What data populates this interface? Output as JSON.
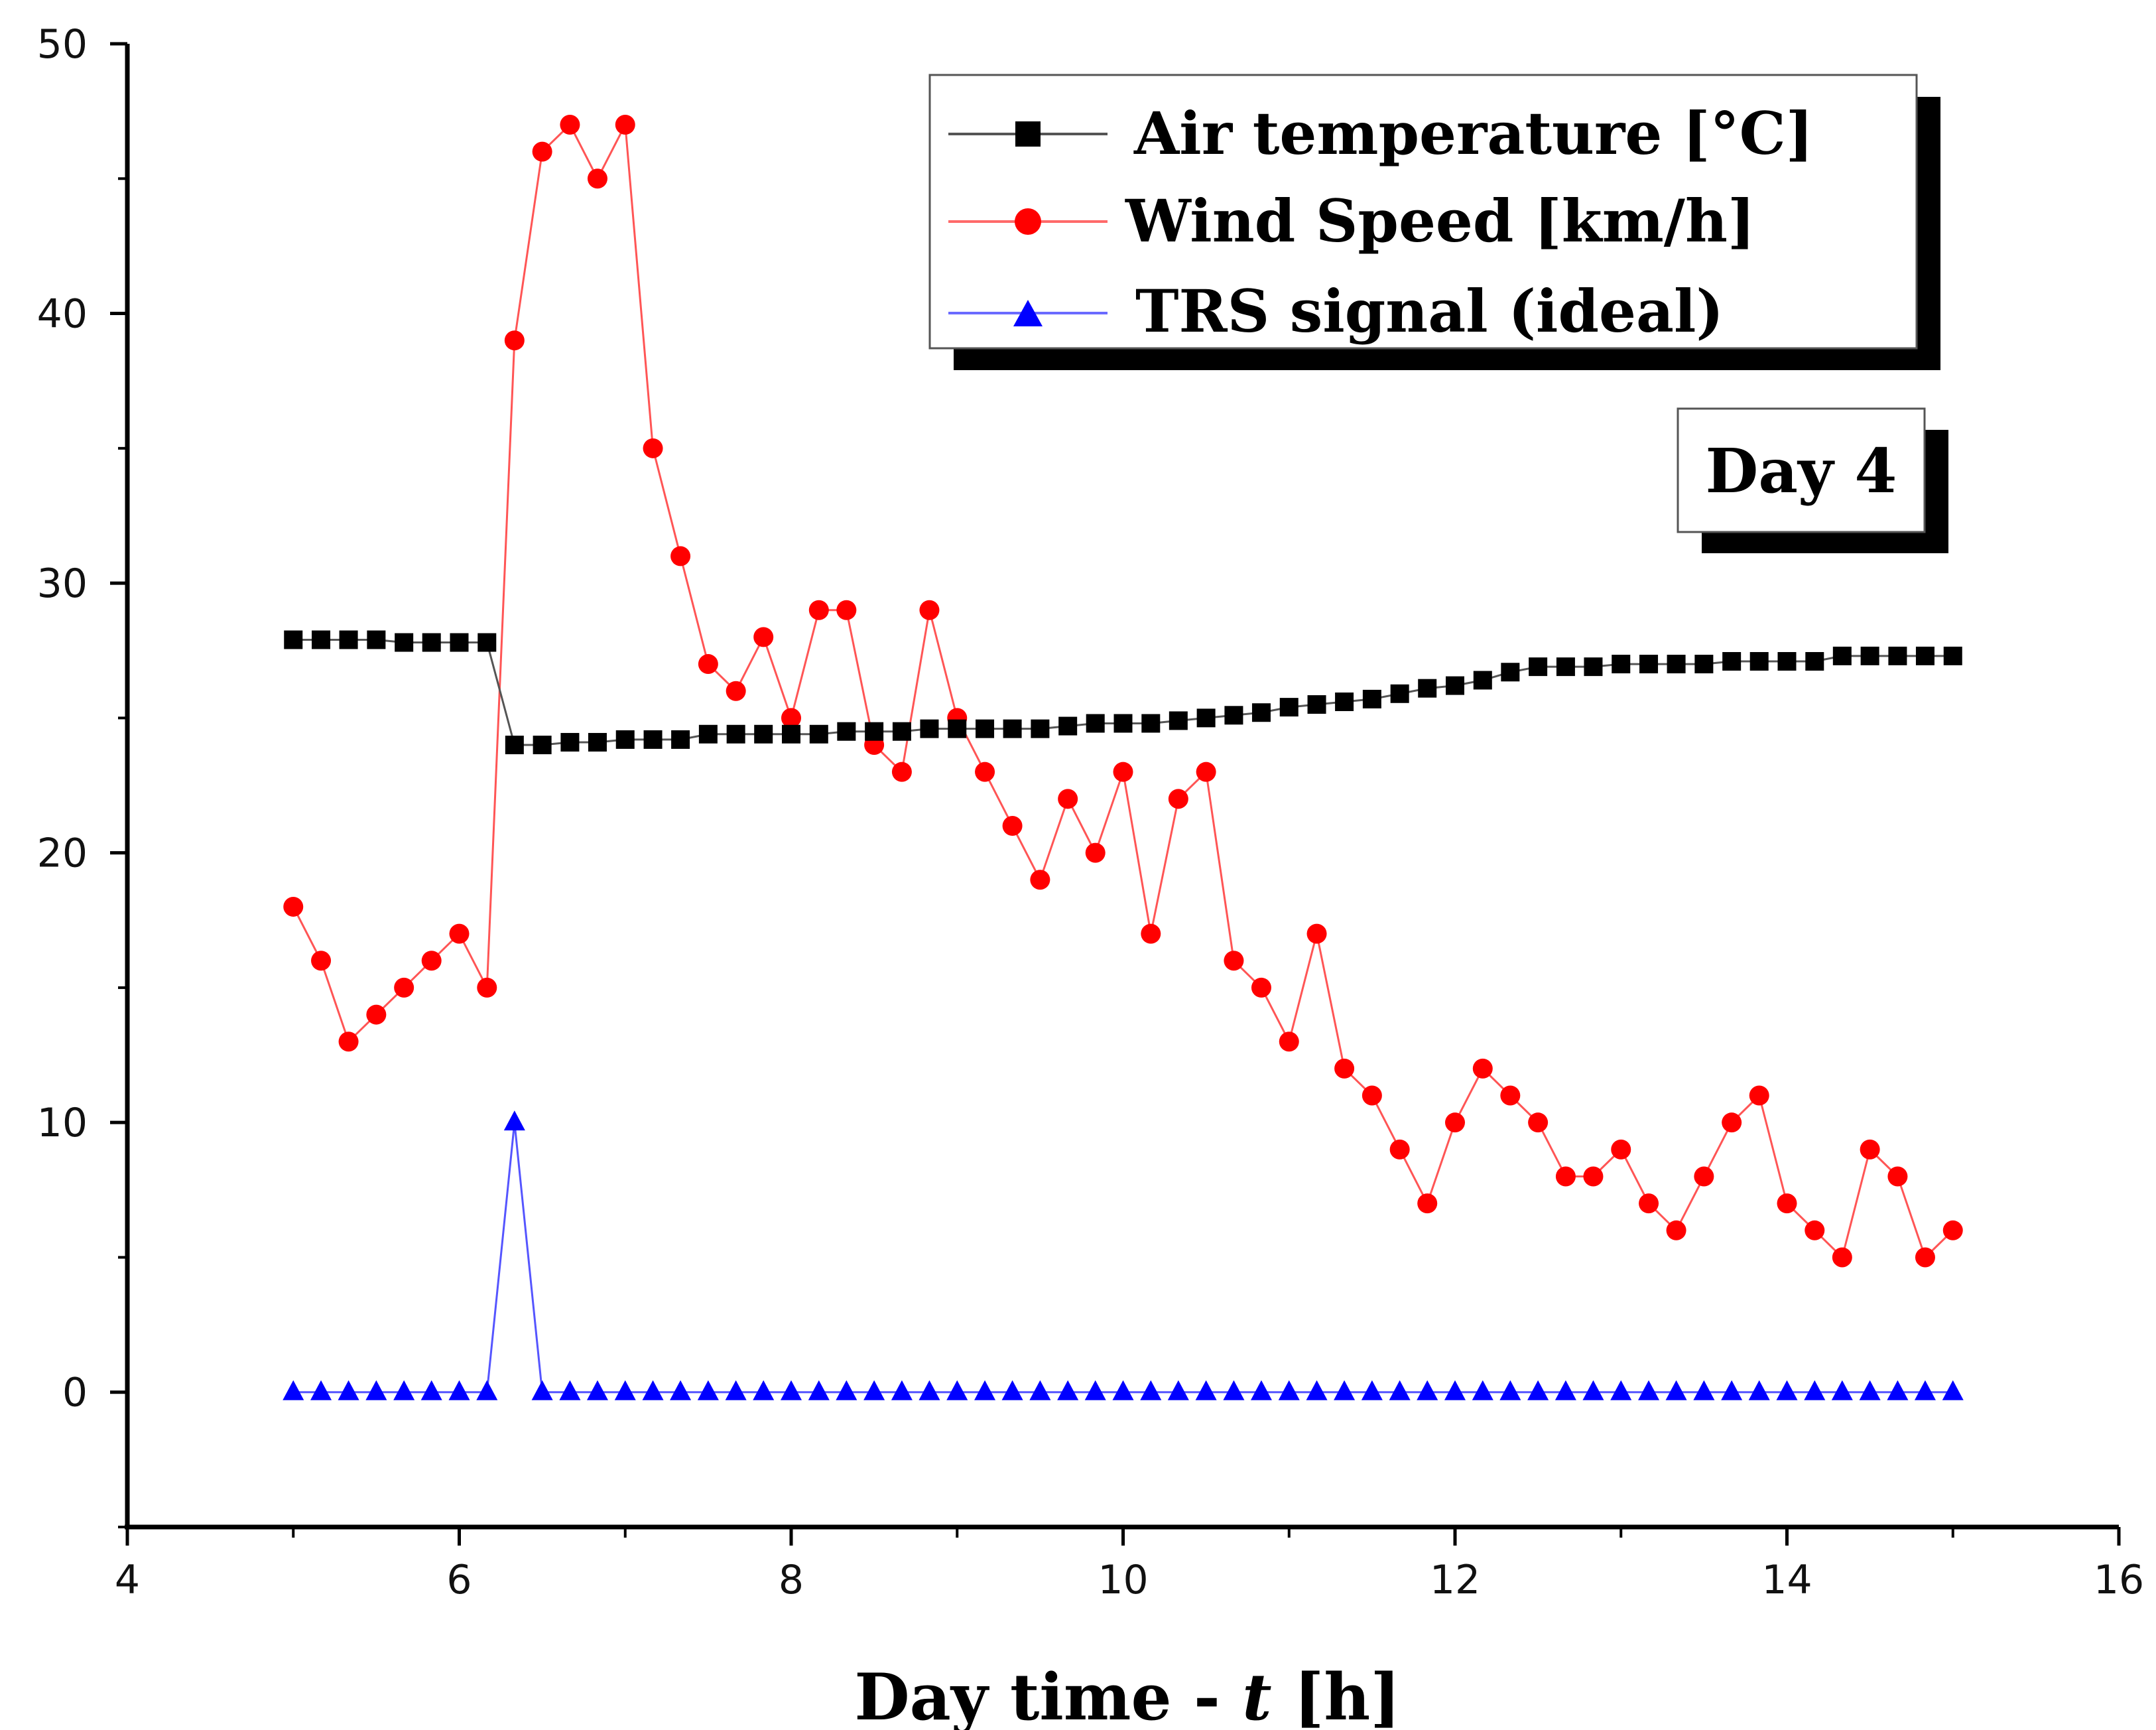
{
  "chart_data": {
    "type": "line",
    "title": "",
    "annotation": "Day 4",
    "xlabel": "Day time - t [h]",
    "xlabel_parts": {
      "prefix": "Day time - ",
      "var": "t",
      "suffix": " [h]"
    },
    "ylabel": "",
    "xlim": [
      4,
      16
    ],
    "ylim": [
      -5,
      50
    ],
    "xticks": [
      4,
      6,
      8,
      10,
      12,
      14,
      16
    ],
    "yticks": [
      0,
      10,
      20,
      30,
      40,
      50
    ],
    "grid": false,
    "legend_position": "top-right",
    "series": [
      {
        "name": "Air temperature [°C]",
        "color": "#000000",
        "marker": "square",
        "x": [
          5,
          5.167,
          5.333,
          5.5,
          5.667,
          5.833,
          6,
          6.167,
          6.333,
          6.5,
          6.667,
          6.833,
          7,
          7.167,
          7.333,
          7.5,
          7.667,
          7.833,
          8,
          8.167,
          8.333,
          8.5,
          8.667,
          8.833,
          9,
          9.167,
          9.333,
          9.5,
          9.667,
          9.833,
          10,
          10.167,
          10.333,
          10.5,
          10.667,
          10.833,
          11,
          11.167,
          11.333,
          11.5,
          11.667,
          11.833,
          12,
          12.167,
          12.333,
          12.5,
          12.667,
          12.833,
          13,
          13.167,
          13.333,
          13.5,
          13.667,
          13.833,
          14,
          14.167,
          14.333,
          14.5,
          14.667,
          14.833,
          15
        ],
        "values": [
          27.9,
          27.9,
          27.9,
          27.9,
          27.8,
          27.8,
          27.8,
          27.8,
          24.0,
          24.0,
          24.1,
          24.1,
          24.2,
          24.2,
          24.2,
          24.4,
          24.4,
          24.4,
          24.4,
          24.4,
          24.5,
          24.5,
          24.5,
          24.6,
          24.6,
          24.6,
          24.6,
          24.6,
          24.7,
          24.8,
          24.8,
          24.8,
          24.9,
          25.0,
          25.1,
          25.2,
          25.4,
          25.5,
          25.6,
          25.7,
          25.9,
          26.1,
          26.2,
          26.4,
          26.7,
          26.9,
          26.9,
          26.9,
          27.0,
          27.0,
          27.0,
          27.0,
          27.1,
          27.1,
          27.1,
          27.1,
          27.3,
          27.3,
          27.3,
          27.3,
          27.3
        ]
      },
      {
        "name": "Wind Speed [km/h]",
        "color": "#ff0000",
        "marker": "circle",
        "x": [
          5,
          5.167,
          5.333,
          5.5,
          5.667,
          5.833,
          6,
          6.167,
          6.333,
          6.5,
          6.667,
          6.833,
          7,
          7.167,
          7.333,
          7.5,
          7.667,
          7.833,
          8,
          8.167,
          8.333,
          8.5,
          8.667,
          8.833,
          9,
          9.167,
          9.333,
          9.5,
          9.667,
          9.833,
          10,
          10.167,
          10.333,
          10.5,
          10.667,
          10.833,
          11,
          11.167,
          11.333,
          11.5,
          11.667,
          11.833,
          12,
          12.167,
          12.333,
          12.5,
          12.667,
          12.833,
          13,
          13.167,
          13.333,
          13.5,
          13.667,
          13.833,
          14,
          14.167,
          14.333,
          14.5,
          14.667,
          14.833,
          15
        ],
        "values": [
          18,
          16,
          13,
          14,
          15,
          16,
          17,
          15,
          39,
          46,
          47,
          45,
          47,
          35,
          31,
          27,
          26,
          28,
          25,
          29,
          29,
          24,
          23,
          29,
          25,
          23,
          21,
          19,
          22,
          20,
          23,
          17,
          22,
          23,
          16,
          15,
          13,
          17,
          12,
          11,
          9,
          7,
          10,
          12,
          11,
          10,
          8,
          8,
          9,
          7,
          6,
          8,
          10,
          11,
          7,
          6,
          5,
          9,
          8,
          5,
          6
        ]
      },
      {
        "name": "TRS signal (ideal)",
        "color": "#0000ff",
        "marker": "triangle",
        "x": [
          5,
          5.167,
          5.333,
          5.5,
          5.667,
          5.833,
          6,
          6.167,
          6.333,
          6.5,
          6.667,
          6.833,
          7,
          7.167,
          7.333,
          7.5,
          7.667,
          7.833,
          8,
          8.167,
          8.333,
          8.5,
          8.667,
          8.833,
          9,
          9.167,
          9.333,
          9.5,
          9.667,
          9.833,
          10,
          10.167,
          10.333,
          10.5,
          10.667,
          10.833,
          11,
          11.167,
          11.333,
          11.5,
          11.667,
          11.833,
          12,
          12.167,
          12.333,
          12.5,
          12.667,
          12.833,
          13,
          13.167,
          13.333,
          13.5,
          13.667,
          13.833,
          14,
          14.167,
          14.333,
          14.5,
          14.667,
          14.833,
          15
        ],
        "values": [
          0,
          0,
          0,
          0,
          0,
          0,
          0,
          0,
          10,
          0,
          0,
          0,
          0,
          0,
          0,
          0,
          0,
          0,
          0,
          0,
          0,
          0,
          0,
          0,
          0,
          0,
          0,
          0,
          0,
          0,
          0,
          0,
          0,
          0,
          0,
          0,
          0,
          0,
          0,
          0,
          0,
          0,
          0,
          0,
          0,
          0,
          0,
          0,
          0,
          0,
          0,
          0,
          0,
          0,
          0,
          0,
          0,
          0,
          0,
          0,
          0
        ]
      }
    ],
    "legend": [
      {
        "label_prefix": "Air temperature [",
        "degree_symbol": "°",
        "label_suffix": "C]"
      },
      {
        "label": "Wind Speed [km/h]"
      },
      {
        "label": "TRS signal (ideal)"
      }
    ]
  }
}
